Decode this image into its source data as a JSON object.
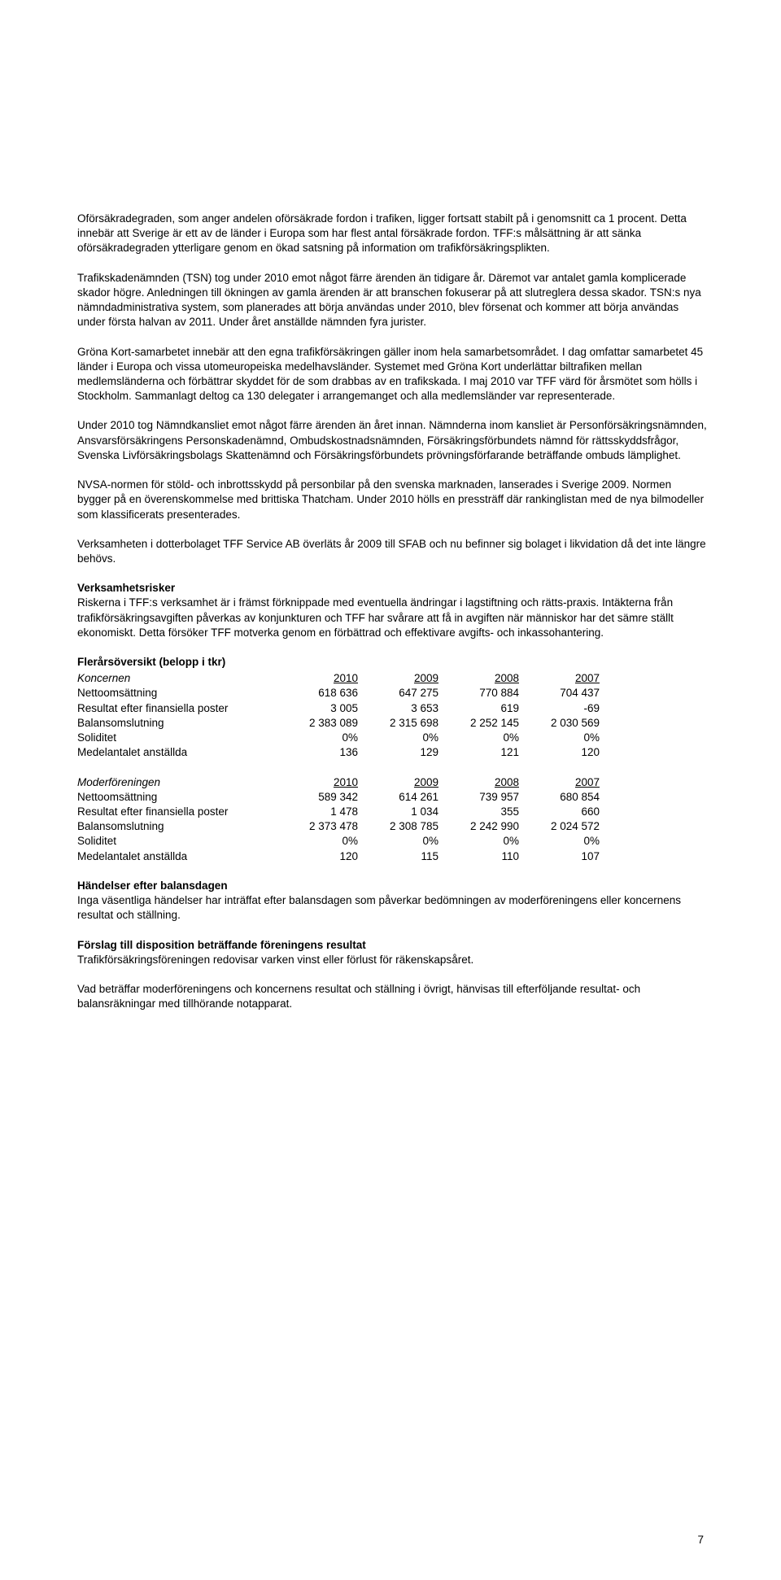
{
  "paragraphs": {
    "p1": "Oförsäkradegraden, som anger andelen oförsäkrade fordon i trafiken, ligger fortsatt stabilt på i genomsnitt ca 1 procent. Detta innebär att Sverige är ett av de länder i Europa som har flest antal försäkrade fordon. TFF:s målsättning är att sänka oförsäkradegraden ytterligare genom en ökad satsning på information om trafikförsäkringsplikten.",
    "p2": "Trafikskadenämnden (TSN) tog under 2010 emot något färre ärenden än tidigare år. Däremot var antalet gamla komplicerade skador högre. Anledningen till ökningen av gamla ärenden är att branschen fokuserar på att slutreglera dessa skador. TSN:s nya nämndadministrativa system, som planerades att börja användas under 2010, blev försenat och kommer att börja användas under första halvan av 2011. Under året anställde nämnden fyra jurister.",
    "p3": "Gröna Kort-samarbetet innebär att den egna trafikförsäkringen gäller inom hela samarbetsområdet. I dag omfattar samarbetet 45 länder i Europa och vissa utomeuropeiska medelhavsländer. Systemet med Gröna Kort underlättar biltrafiken mellan medlemsländerna och förbättrar skyddet för de som drabbas av en trafikskada. I maj 2010 var TFF värd för årsmötet som hölls i Stockholm. Sammanlagt deltog ca 130 delegater i arrangemanget och alla medlemsländer var representerade.",
    "p4": "Under 2010 tog Nämndkansliet emot något färre ärenden än året innan. Nämnderna inom kansliet är Personförsäkringsnämnden, Ansvarsförsäkringens Personskadenämnd, Ombudskostnadsnämnden, Försäkringsförbundets nämnd för rättsskyddsfrågor, Svenska Livförsäkringsbolags Skattenämnd och Försäkringsförbundets prövningsförfarande beträffande ombuds lämplighet.",
    "p5": "NVSA-normen för stöld- och inbrottsskydd på personbilar på den svenska marknaden, lanserades i Sverige 2009. Normen bygger på en överenskommelse med brittiska Thatcham. Under 2010 hölls en pressträff där rankinglistan med de nya bilmodeller som klassificerats presenterades.",
    "p6": "Verksamheten i dotterbolaget TFF Service AB överläts år 2009 till SFAB och nu befinner sig bolaget i likvidation då det inte längre behövs."
  },
  "risks": {
    "heading": "Verksamhetsrisker",
    "body": "Riskerna i TFF:s verksamhet är i främst förknippade med eventuella ändringar i lagstiftning och rätts-praxis. Intäkterna från trafikförsäkringsavgiften påverkas av konjunkturen och TFF har svårare att få in avgiften när människor har det sämre ställt ekonomiskt. Detta försöker TFF motverka genom en förbättrad och effektivare avgifts- och inkassohantering."
  },
  "overview": {
    "heading": "Flerårsöversikt (belopp i tkr)",
    "koncernen": {
      "title": "Koncernen",
      "years": [
        "2010",
        "2009",
        "2008",
        "2007"
      ],
      "rows": [
        {
          "label": "Nettoomsättning",
          "vals": [
            "618 636",
            "647 275",
            "770 884",
            "704 437"
          ]
        },
        {
          "label": "Resultat efter finansiella poster",
          "vals": [
            "3 005",
            "3 653",
            "619",
            "-69"
          ]
        },
        {
          "label": "Balansomslutning",
          "vals": [
            "2 383 089",
            "2 315 698",
            "2 252 145",
            "2 030 569"
          ]
        },
        {
          "label": "Soliditet",
          "vals": [
            "0%",
            "0%",
            "0%",
            "0%"
          ]
        },
        {
          "label": "Medelantalet anställda",
          "vals": [
            "136",
            "129",
            "121",
            "120"
          ]
        }
      ]
    },
    "moderforeningen": {
      "title": "Moderföreningen",
      "years": [
        "2010",
        "2009",
        "2008",
        "2007"
      ],
      "rows": [
        {
          "label": "Nettoomsättning",
          "vals": [
            "589 342",
            "614 261",
            "739 957",
            "680 854"
          ]
        },
        {
          "label": "Resultat efter finansiella poster",
          "vals": [
            "1 478",
            "1 034",
            "355",
            "660"
          ]
        },
        {
          "label": "Balansomslutning",
          "vals": [
            "2 373 478",
            "2 308 785",
            "2 242 990",
            "2 024 572"
          ]
        },
        {
          "label": "Soliditet",
          "vals": [
            "0%",
            "0%",
            "0%",
            "0%"
          ]
        },
        {
          "label": "Medelantalet anställda",
          "vals": [
            "120",
            "115",
            "110",
            "107"
          ]
        }
      ]
    }
  },
  "events": {
    "heading": "Händelser efter balansdagen",
    "body": "Inga väsentliga händelser har  inträffat efter balansdagen som påverkar bedömningen av moderföreningens eller koncernens resultat och ställning."
  },
  "proposal": {
    "heading": "Förslag till disposition beträffande föreningens resultat",
    "body": "Trafikförsäkringsföreningen redovisar varken vinst eller förlust för räkenskapsåret."
  },
  "closing": "Vad beträffar moderföreningens och koncernens resultat och ställning i övrigt, hänvisas till efterföljande resultat- och balansräkningar med tillhörande notapparat.",
  "page_number": "7"
}
